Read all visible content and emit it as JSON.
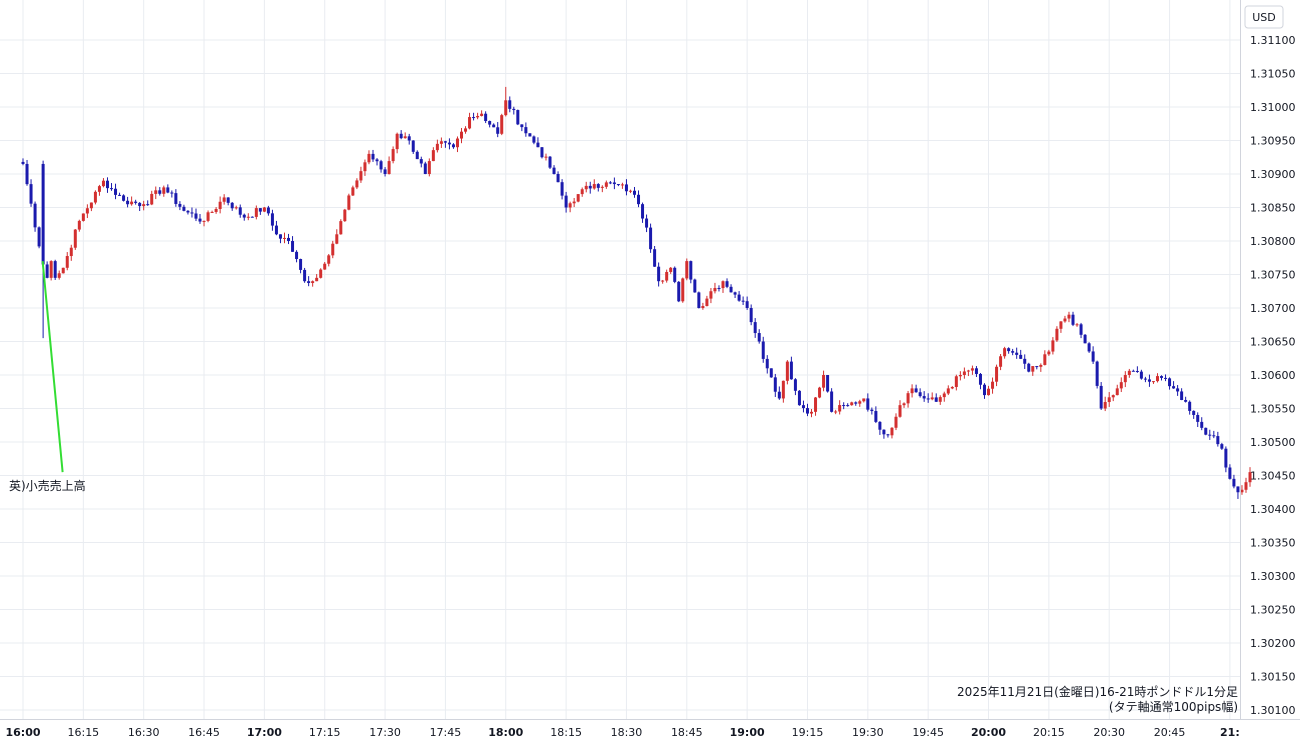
{
  "chart_data": {
    "type": "candlestick",
    "currency_label": "USD",
    "caption_line1": "2025年11月21日(金曜日)16-21時ポンドドル1分足",
    "caption_line2": "(タテ軸通常100pips幅)",
    "annotation": "英)小売売上高",
    "ylim": [
      1.301,
      1.3114
    ],
    "y_ticks": [
      "1.31100",
      "1.31050",
      "1.31000",
      "1.30950",
      "1.30900",
      "1.30850",
      "1.30800",
      "1.30750",
      "1.30700",
      "1.30650",
      "1.30600",
      "1.30550",
      "1.30500",
      "1.30450",
      "1.30400",
      "1.30350",
      "1.30300",
      "1.30250",
      "1.30200",
      "1.30150",
      "1.30100"
    ],
    "x_ticks": [
      {
        "label": "16:00",
        "bold": true
      },
      {
        "label": "16:15",
        "bold": false
      },
      {
        "label": "16:30",
        "bold": false
      },
      {
        "label": "16:45",
        "bold": false
      },
      {
        "label": "17:00",
        "bold": true
      },
      {
        "label": "17:15",
        "bold": false
      },
      {
        "label": "17:30",
        "bold": false
      },
      {
        "label": "17:45",
        "bold": false
      },
      {
        "label": "18:00",
        "bold": true
      },
      {
        "label": "18:15",
        "bold": false
      },
      {
        "label": "18:30",
        "bold": false
      },
      {
        "label": "18:45",
        "bold": false
      },
      {
        "label": "19:00",
        "bold": true
      },
      {
        "label": "19:15",
        "bold": false
      },
      {
        "label": "19:30",
        "bold": false
      },
      {
        "label": "19:45",
        "bold": false
      },
      {
        "label": "20:00",
        "bold": true
      },
      {
        "label": "20:15",
        "bold": false
      },
      {
        "label": "20:30",
        "bold": false
      },
      {
        "label": "20:45",
        "bold": false
      },
      {
        "label": "21:",
        "bold": true
      }
    ],
    "up_color": "#d32f2f",
    "down_color": "#1a1aad",
    "annotation_color": "#33dd33",
    "annotation_bar_index": 5,
    "annotation_price": 1.30455,
    "anchors": [
      {
        "i": 0,
        "p": 1.30915
      },
      {
        "i": 5,
        "p": 1.30765
      },
      {
        "i": 6,
        "p": 1.30745
      },
      {
        "i": 7,
        "p": 1.3077
      },
      {
        "i": 8,
        "p": 1.30745
      },
      {
        "i": 10,
        "p": 1.3076
      },
      {
        "i": 14,
        "p": 1.3083
      },
      {
        "i": 20,
        "p": 1.3089
      },
      {
        "i": 25,
        "p": 1.3086
      },
      {
        "i": 30,
        "p": 1.30855
      },
      {
        "i": 35,
        "p": 1.3088
      },
      {
        "i": 40,
        "p": 1.30845
      },
      {
        "i": 45,
        "p": 1.3083
      },
      {
        "i": 50,
        "p": 1.30865
      },
      {
        "i": 55,
        "p": 1.30835
      },
      {
        "i": 60,
        "p": 1.3085
      },
      {
        "i": 63,
        "p": 1.3081
      },
      {
        "i": 66,
        "p": 1.308
      },
      {
        "i": 70,
        "p": 1.3074
      },
      {
        "i": 73,
        "p": 1.30745
      },
      {
        "i": 78,
        "p": 1.3081
      },
      {
        "i": 82,
        "p": 1.3088
      },
      {
        "i": 86,
        "p": 1.3093
      },
      {
        "i": 90,
        "p": 1.309
      },
      {
        "i": 93,
        "p": 1.3096
      },
      {
        "i": 96,
        "p": 1.3095
      },
      {
        "i": 100,
        "p": 1.309
      },
      {
        "i": 103,
        "p": 1.30945
      },
      {
        "i": 107,
        "p": 1.3094
      },
      {
        "i": 111,
        "p": 1.30985
      },
      {
        "i": 114,
        "p": 1.3099
      },
      {
        "i": 118,
        "p": 1.3096
      },
      {
        "i": 120,
        "p": 1.3101
      },
      {
        "i": 124,
        "p": 1.3097
      },
      {
        "i": 128,
        "p": 1.3094
      },
      {
        "i": 132,
        "p": 1.309
      },
      {
        "i": 135,
        "p": 1.3085
      },
      {
        "i": 138,
        "p": 1.3087
      },
      {
        "i": 142,
        "p": 1.30885
      },
      {
        "i": 147,
        "p": 1.30885
      },
      {
        "i": 151,
        "p": 1.30875
      },
      {
        "i": 153,
        "p": 1.30855
      },
      {
        "i": 155,
        "p": 1.3082
      },
      {
        "i": 158,
        "p": 1.3074
      },
      {
        "i": 161,
        "p": 1.3076
      },
      {
        "i": 163,
        "p": 1.3071
      },
      {
        "i": 165,
        "p": 1.3077
      },
      {
        "i": 168,
        "p": 1.307
      },
      {
        "i": 171,
        "p": 1.30725
      },
      {
        "i": 174,
        "p": 1.3074
      },
      {
        "i": 177,
        "p": 1.3072
      },
      {
        "i": 180,
        "p": 1.307
      },
      {
        "i": 183,
        "p": 1.3065
      },
      {
        "i": 185,
        "p": 1.3061
      },
      {
        "i": 188,
        "p": 1.30565
      },
      {
        "i": 190,
        "p": 1.3062
      },
      {
        "i": 193,
        "p": 1.30555
      },
      {
        "i": 196,
        "p": 1.30545
      },
      {
        "i": 199,
        "p": 1.306
      },
      {
        "i": 201,
        "p": 1.30545
      },
      {
        "i": 205,
        "p": 1.30555
      },
      {
        "i": 209,
        "p": 1.30565
      },
      {
        "i": 212,
        "p": 1.3053
      },
      {
        "i": 215,
        "p": 1.3051
      },
      {
        "i": 218,
        "p": 1.30555
      },
      {
        "i": 221,
        "p": 1.3058
      },
      {
        "i": 224,
        "p": 1.30565
      },
      {
        "i": 227,
        "p": 1.3056
      },
      {
        "i": 230,
        "p": 1.3058
      },
      {
        "i": 233,
        "p": 1.306
      },
      {
        "i": 236,
        "p": 1.3061
      },
      {
        "i": 239,
        "p": 1.3057
      },
      {
        "i": 241,
        "p": 1.3059
      },
      {
        "i": 244,
        "p": 1.3064
      },
      {
        "i": 247,
        "p": 1.3063
      },
      {
        "i": 250,
        "p": 1.30605
      },
      {
        "i": 253,
        "p": 1.30615
      },
      {
        "i": 255,
        "p": 1.30635
      },
      {
        "i": 258,
        "p": 1.3068
      },
      {
        "i": 260,
        "p": 1.3069
      },
      {
        "i": 263,
        "p": 1.3066
      },
      {
        "i": 266,
        "p": 1.3062
      },
      {
        "i": 268,
        "p": 1.3055
      },
      {
        "i": 271,
        "p": 1.3057
      },
      {
        "i": 274,
        "p": 1.306
      },
      {
        "i": 277,
        "p": 1.30605
      },
      {
        "i": 280,
        "p": 1.3059
      },
      {
        "i": 284,
        "p": 1.30595
      },
      {
        "i": 286,
        "p": 1.3058
      },
      {
        "i": 289,
        "p": 1.3056
      },
      {
        "i": 292,
        "p": 1.3053
      },
      {
        "i": 295,
        "p": 1.3051
      },
      {
        "i": 298,
        "p": 1.3049
      },
      {
        "i": 300,
        "p": 1.30445
      },
      {
        "i": 302,
        "p": 1.30425
      },
      {
        "i": 304,
        "p": 1.3044
      },
      {
        "i": 305,
        "p": 1.30455
      }
    ]
  }
}
